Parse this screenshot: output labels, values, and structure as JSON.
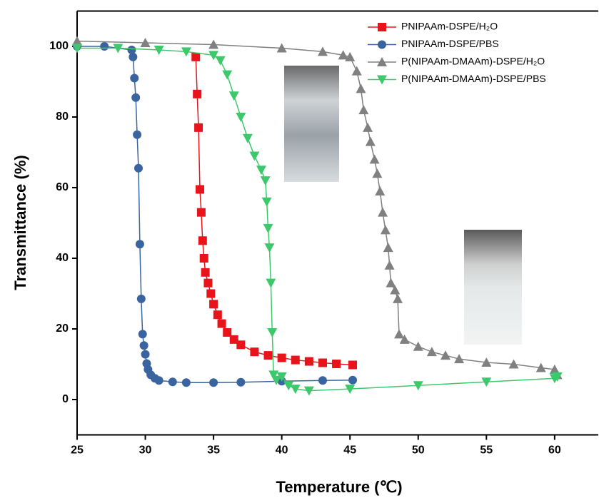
{
  "chart_data": {
    "type": "line",
    "xlabel": "Temperature (℃)",
    "ylabel": "Transmittance (%)",
    "xlim": [
      25,
      63.2
    ],
    "ylim": [
      -10,
      110
    ],
    "xticks": [
      25,
      30,
      35,
      40,
      45,
      50,
      55,
      60
    ],
    "yticks": [
      0,
      20,
      40,
      60,
      80,
      100
    ],
    "legend": "upper right",
    "series": [
      {
        "name": "PNIPAAm-DSPE/H₂O",
        "color": "#e8131b",
        "marker": "square",
        "x": [
          33.7,
          33.8,
          33.9,
          34.0,
          34.1,
          34.2,
          34.3,
          34.4,
          34.6,
          34.8,
          35.0,
          35.3,
          35.6,
          36.0,
          36.5,
          37.0,
          38.0,
          39.0,
          40.0,
          41.0,
          42.0,
          43.0,
          44.0,
          45.2
        ],
        "values": [
          97,
          86.5,
          77,
          59.5,
          53,
          45,
          40,
          36,
          33,
          30,
          27,
          24,
          21.5,
          19,
          17,
          15.5,
          13.5,
          12.5,
          11.8,
          11.2,
          10.8,
          10.4,
          10.1,
          9.8
        ]
      },
      {
        "name": "PNIPAAm-DSPE/PBS",
        "color": "#3a64a0",
        "marker": "circle",
        "x": [
          25,
          27,
          29,
          29.1,
          29.2,
          29.3,
          29.4,
          29.5,
          29.6,
          29.7,
          29.8,
          29.9,
          30.0,
          30.1,
          30.2,
          30.4,
          30.7,
          31,
          32,
          33,
          35,
          37,
          40,
          43,
          45.2
        ],
        "values": [
          100,
          100,
          99,
          97,
          91,
          85.5,
          75,
          65.5,
          44,
          28.5,
          18.5,
          15.3,
          12.8,
          10.2,
          8.5,
          7,
          6,
          5.4,
          5,
          4.8,
          4.8,
          4.9,
          5.2,
          5.4,
          5.5
        ]
      },
      {
        "name": "P(NIPAAm-DMAAm)-DSPE/H₂O",
        "color": "#808080",
        "marker": "triangle-up",
        "x": [
          25,
          30,
          35,
          40,
          43,
          44.5,
          45,
          45.5,
          45.8,
          46,
          46.3,
          46.5,
          46.8,
          47,
          47.2,
          47.4,
          47.6,
          47.8,
          47.9,
          48,
          48.3,
          48.5,
          48.6,
          49,
          50,
          51,
          52,
          53,
          55,
          57,
          59,
          60,
          60.2
        ],
        "values": [
          101.5,
          101,
          100.5,
          99.5,
          98.5,
          97.5,
          97,
          93,
          88,
          82,
          77,
          73,
          68,
          64,
          59,
          53,
          48,
          43,
          38,
          33,
          31,
          28.5,
          18.5,
          17,
          15,
          13.5,
          12.5,
          11.5,
          10.5,
          10,
          9,
          8.5,
          7
        ]
      },
      {
        "name": "P(NIPAAm-DMAAm)-DSPE/PBS",
        "color": "#3dc96b",
        "marker": "triangle-down",
        "x": [
          25,
          28,
          31,
          33,
          35,
          35.5,
          36,
          36.5,
          37,
          37.5,
          38,
          38.5,
          38.8,
          38.9,
          39,
          39.1,
          39.2,
          39.3,
          39.4,
          39.6,
          40,
          40.5,
          41,
          42,
          45,
          50,
          55,
          60,
          60.2
        ],
        "values": [
          99.5,
          99.5,
          99,
          98.5,
          97.5,
          96,
          92,
          86,
          80,
          74,
          69,
          65,
          62,
          56,
          48.5,
          43,
          33,
          19,
          7,
          5.5,
          6.5,
          4,
          3,
          2.5,
          3,
          4,
          5,
          6,
          6.5
        ]
      }
    ]
  }
}
